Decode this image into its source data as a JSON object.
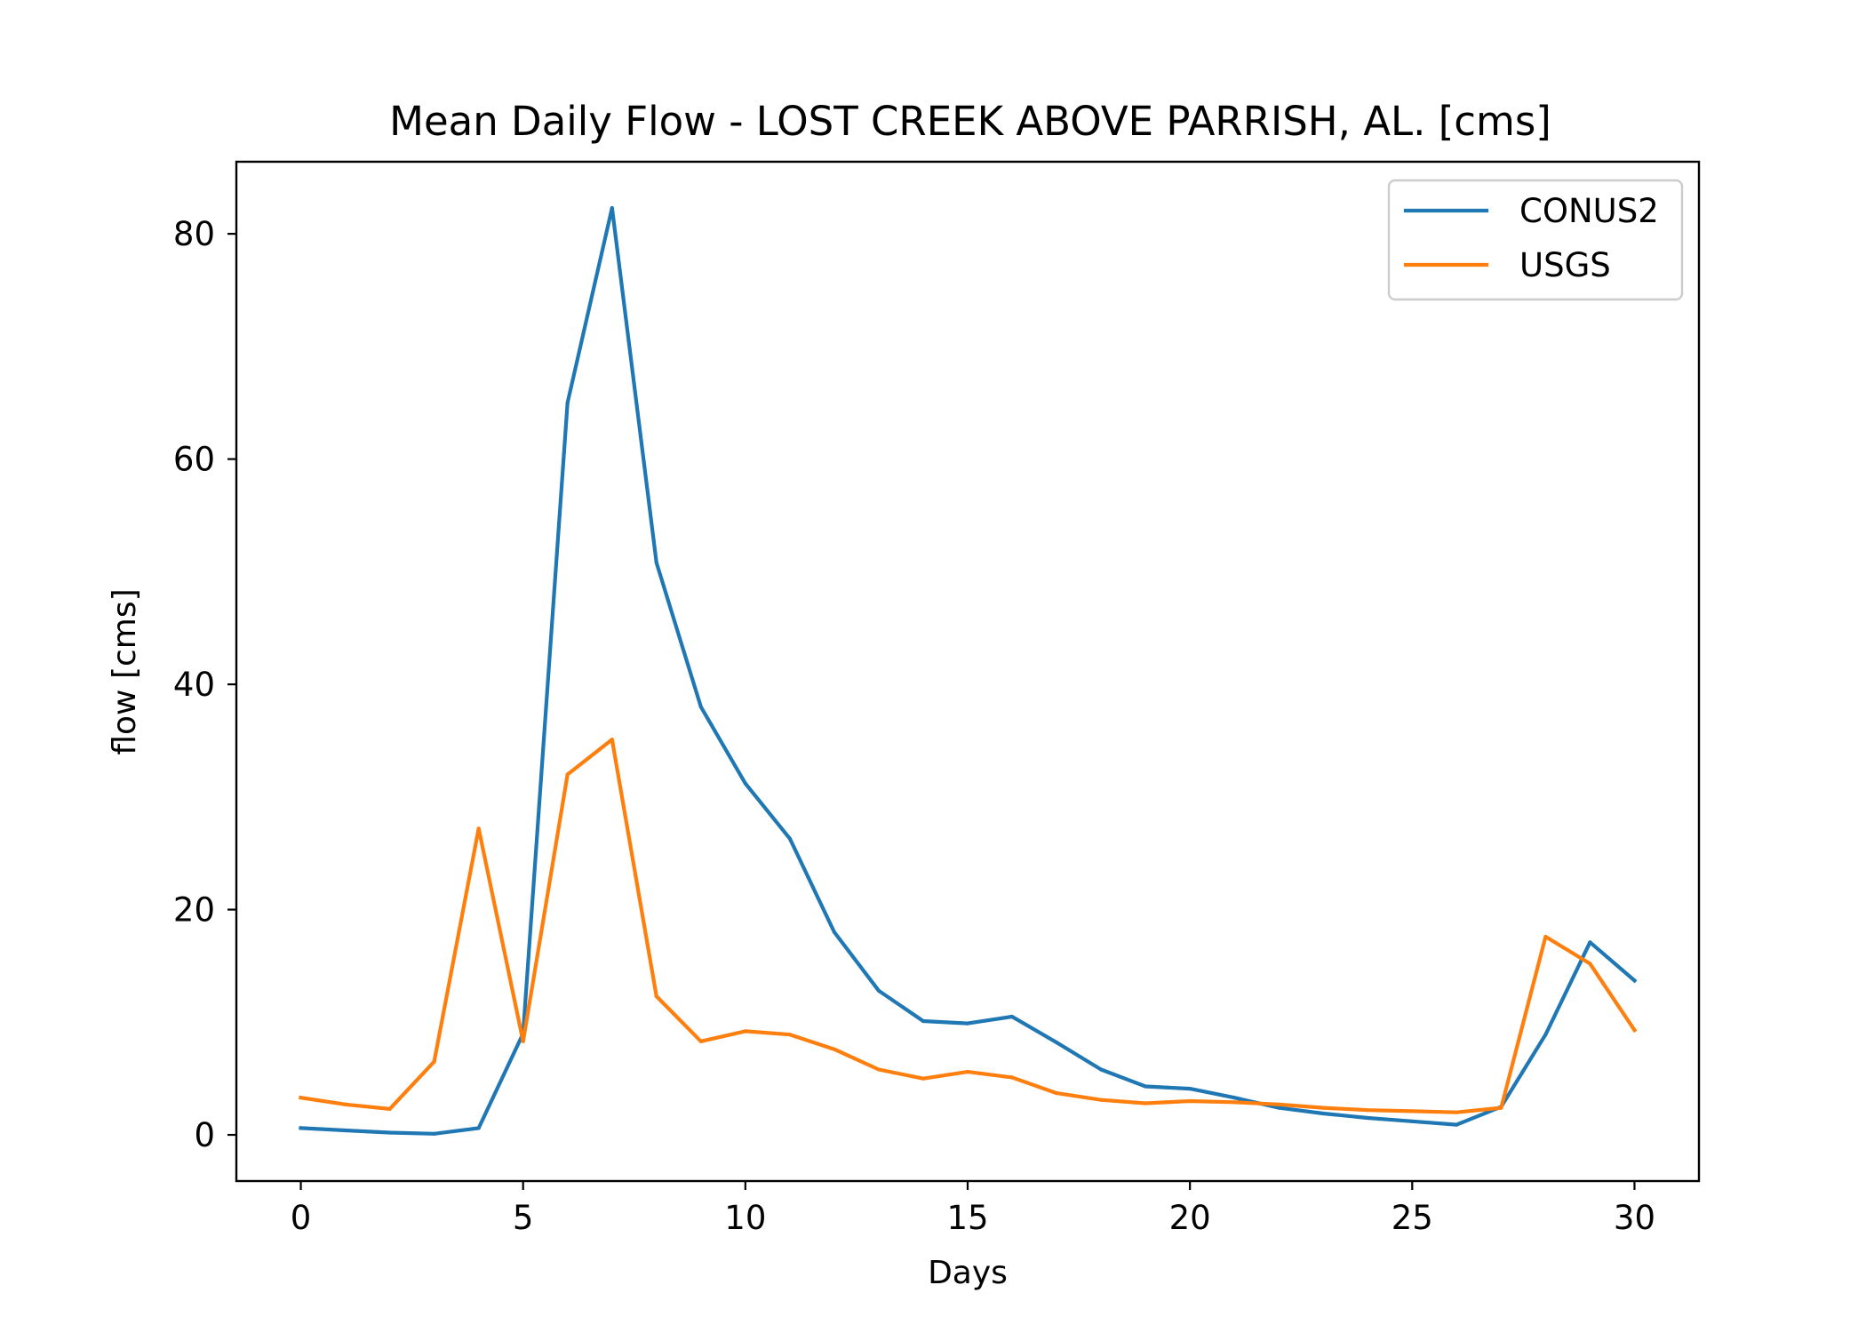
{
  "chart_data": {
    "type": "line",
    "title": "Mean Daily Flow - LOST CREEK ABOVE PARRISH, AL. [cms]",
    "xlabel": "Days",
    "ylabel": "flow [cms]",
    "xlim": [
      -1.45,
      31.45
    ],
    "ylim": [
      -4.1,
      86.4
    ],
    "xticks": [
      0,
      5,
      10,
      15,
      20,
      25,
      30
    ],
    "yticks": [
      0,
      20,
      40,
      60,
      80
    ],
    "grid": false,
    "legend_position": "top-right",
    "x": [
      0,
      1,
      2,
      3,
      4,
      5,
      6,
      7,
      8,
      9,
      10,
      11,
      12,
      13,
      14,
      15,
      16,
      17,
      18,
      19,
      20,
      21,
      22,
      23,
      24,
      25,
      26,
      27,
      28,
      29,
      30
    ],
    "series": [
      {
        "name": "CONUS2",
        "color": "#1f77b4",
        "values": [
          0.6,
          0.4,
          0.2,
          0.1,
          0.6,
          9.0,
          65.0,
          82.3,
          50.8,
          38.0,
          31.2,
          26.3,
          18.0,
          12.8,
          10.1,
          9.9,
          10.5,
          8.2,
          5.8,
          4.3,
          4.1,
          3.3,
          2.4,
          1.9,
          1.5,
          1.2,
          0.9,
          2.5,
          8.9,
          17.1,
          13.7
        ]
      },
      {
        "name": "USGS",
        "color": "#ff7f0e",
        "values": [
          3.3,
          2.7,
          2.3,
          6.5,
          27.2,
          8.3,
          32.0,
          35.1,
          12.3,
          8.3,
          9.2,
          8.9,
          7.6,
          5.8,
          5.0,
          5.6,
          5.1,
          3.7,
          3.1,
          2.8,
          3.0,
          2.9,
          2.7,
          2.4,
          2.2,
          2.1,
          2.0,
          2.4,
          17.6,
          15.2,
          9.3
        ]
      }
    ]
  }
}
